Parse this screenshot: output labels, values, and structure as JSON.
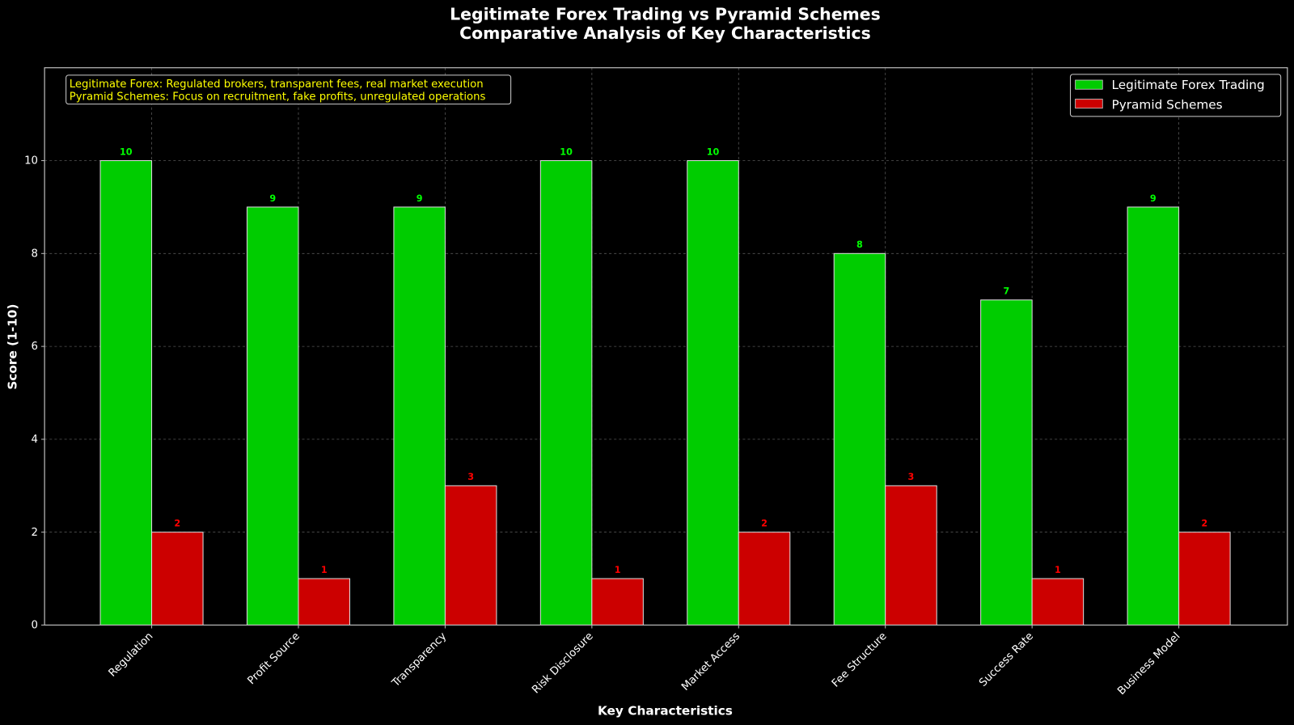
{
  "chart_data": {
    "type": "bar",
    "title": "Legitimate Forex Trading vs Pyramid Schemes",
    "subtitle": "Comparative Analysis of Key Characteristics",
    "xlabel": "Key Characteristics",
    "ylabel": "Score (1-10)",
    "ylim": [
      0,
      12
    ],
    "yticks": [
      0,
      2,
      4,
      6,
      8,
      10
    ],
    "grid": true,
    "legend_position": "top-right",
    "categories": [
      "Regulation",
      "Profit Source",
      "Transparency",
      "Risk Disclosure",
      "Market Access",
      "Fee Structure",
      "Success Rate",
      "Business Model"
    ],
    "series": [
      {
        "name": "Legitimate Forex Trading",
        "color": "#00cc00",
        "label_color": "#00ff00",
        "values": [
          10,
          9,
          9,
          10,
          10,
          8,
          7,
          9
        ]
      },
      {
        "name": "Pyramid Schemes",
        "color": "#cc0000",
        "label_color": "#ff0000",
        "values": [
          2,
          1,
          3,
          1,
          2,
          3,
          1,
          2
        ]
      }
    ],
    "annotation": [
      "Legitimate Forex: Regulated brokers, transparent fees, real market execution",
      "Pyramid Schemes: Focus on recruitment, fake profits, unregulated operations"
    ],
    "annotation_color": "#ffff00",
    "background": "#000000"
  }
}
